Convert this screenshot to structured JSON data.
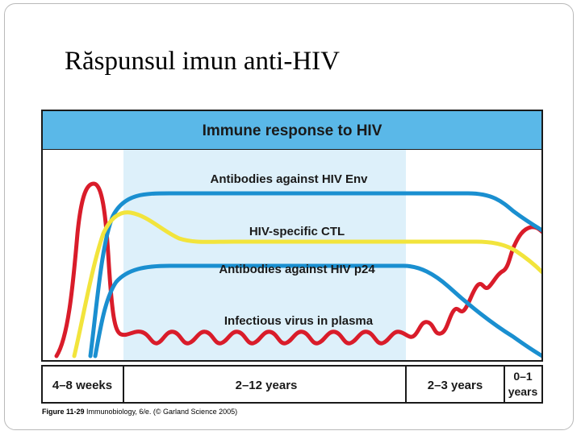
{
  "slide": {
    "title": "Răspunsul imun anti-HIV"
  },
  "figure": {
    "header": "Immune response to HIV",
    "curve_labels": {
      "env": "Antibodies against HIV  Env",
      "ctl": "HIV-specific CTL",
      "p24": "Antibodies against HIV  p24",
      "virus": "Infectious virus in plasma"
    },
    "phases": [
      {
        "label_lines": [
          "4–8 weeks"
        ]
      },
      {
        "label_lines": [
          "2–12  years"
        ]
      },
      {
        "label_lines": [
          "2–3  years"
        ]
      },
      {
        "label_lines": [
          "0–1",
          "years"
        ]
      }
    ],
    "caption_bold": "Figure 11-29",
    "caption_rest": " Immunobiology, 6/e. (© Garland Science 2005)",
    "colors": {
      "header_bg": "#5ab8e8",
      "latency_band": "#ddf0fa",
      "env": "#1a8fd0",
      "ctl": "#f2e43c",
      "p24": "#1a8fd0",
      "virus": "#d91c2a",
      "frame": "#1a1a1a"
    }
  }
}
